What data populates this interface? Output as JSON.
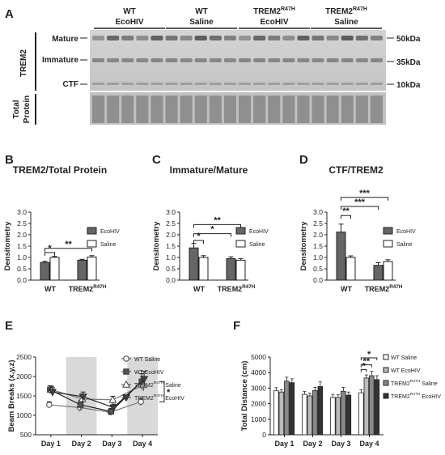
{
  "panels": {
    "A": {
      "letter": "A",
      "groups": [
        {
          "line1": "WT",
          "line1_sup": "",
          "line2": "EcoHIV"
        },
        {
          "line1": "WT",
          "line1_sup": "",
          "line2": "Saline"
        },
        {
          "line1": "TREM2",
          "line1_sup": "R47H",
          "line2": "EcoHIV"
        },
        {
          "line1": "TREM2",
          "line1_sup": "R47H",
          "line2": "Saline"
        }
      ],
      "band_labels": [
        "Mature",
        "Immature",
        "CTF"
      ],
      "side_label": "TREM2",
      "loading_label_1": "Total",
      "loading_label_2": "Protein",
      "markers": [
        "50kDa",
        "35kDa",
        "10kDa"
      ]
    },
    "B": {
      "letter": "B"
    },
    "C": {
      "letter": "C"
    },
    "D": {
      "letter": "D"
    },
    "E": {
      "letter": "E"
    },
    "F": {
      "letter": "F"
    }
  },
  "chart_data": [
    {
      "id": "B",
      "type": "bar",
      "title": "TREM2/Total Protein",
      "ylabel": "Densitometry",
      "ylim": [
        0,
        3.0
      ],
      "yticks": [
        "0.0",
        "0.5",
        "1.0",
        "1.5",
        "2.0",
        "2.5",
        "3.0"
      ],
      "categories": [
        "WT",
        "TREM2"
      ],
      "category_sup": [
        "",
        "R47H"
      ],
      "series": [
        {
          "name": "EcoHIV",
          "values": [
            0.78,
            0.88
          ],
          "errors": [
            0.05,
            0.04
          ],
          "color": "#666666"
        },
        {
          "name": "Saline",
          "values": [
            1.0,
            1.02
          ],
          "errors": [
            0.05,
            0.06
          ],
          "color": "#ffffff"
        }
      ],
      "significance": [
        {
          "from": [
            0,
            0
          ],
          "to": [
            0,
            1
          ],
          "y": 1.22,
          "label": "*"
        },
        {
          "from": [
            0,
            0
          ],
          "to": [
            1,
            1
          ],
          "y": 1.4,
          "label": "**"
        }
      ],
      "legend": "top-right"
    },
    {
      "id": "C",
      "type": "bar",
      "title": "Immature/Mature",
      "ylabel": "Densitometry",
      "ylim": [
        0,
        3.0
      ],
      "yticks": [
        "0.0",
        "0.5",
        "1.0",
        "1.5",
        "2.0",
        "2.5",
        "3.0"
      ],
      "categories": [
        "WT",
        "TREM2"
      ],
      "category_sup": [
        "",
        "R47H"
      ],
      "series": [
        {
          "name": "EcoHIV",
          "values": [
            1.42,
            0.95
          ],
          "errors": [
            0.2,
            0.08
          ],
          "color": "#666666"
        },
        {
          "name": "Saline",
          "values": [
            1.0,
            0.88
          ],
          "errors": [
            0.08,
            0.07
          ],
          "color": "#ffffff"
        }
      ],
      "significance": [
        {
          "from": [
            0,
            0
          ],
          "to": [
            0,
            1
          ],
          "y": 1.75,
          "label": "*"
        },
        {
          "from": [
            0,
            0
          ],
          "to": [
            1,
            0
          ],
          "y": 2.05,
          "label": "*"
        },
        {
          "from": [
            0,
            0
          ],
          "to": [
            1,
            1
          ],
          "y": 2.45,
          "label": "**"
        }
      ],
      "legend": "top-right"
    },
    {
      "id": "D",
      "type": "bar",
      "title": "CTF/TREM2",
      "ylabel": "Densitometry",
      "ylim": [
        0,
        3.0
      ],
      "yticks": [
        "0.0",
        "0.5",
        "1.0",
        "1.5",
        "2.0",
        "2.5",
        "3.0"
      ],
      "categories": [
        "WT",
        "TREM2"
      ],
      "category_sup": [
        "",
        "R47H"
      ],
      "series": [
        {
          "name": "EcoHIV",
          "values": [
            2.12,
            0.65
          ],
          "errors": [
            0.35,
            0.12
          ],
          "color": "#666666"
        },
        {
          "name": "Saline",
          "values": [
            1.0,
            0.82
          ],
          "errors": [
            0.07,
            0.08
          ],
          "color": "#ffffff"
        }
      ],
      "significance": [
        {
          "from": [
            0,
            0
          ],
          "to": [
            0,
            1
          ],
          "y": 2.85,
          "label": "**"
        },
        {
          "from": [
            0,
            0
          ],
          "to": [
            1,
            0
          ],
          "y": 3.25,
          "label": "***"
        },
        {
          "from": [
            0,
            0
          ],
          "to": [
            1,
            1
          ],
          "y": 3.65,
          "label": "***"
        }
      ],
      "legend": "top-right"
    },
    {
      "id": "E",
      "type": "line",
      "ylabel": "Beam Breaks (x,y,z)",
      "ylim": [
        500,
        2500
      ],
      "yticks": [
        "500",
        "1000",
        "1500",
        "2000",
        "2500"
      ],
      "categories": [
        "Day 1",
        "Day 2",
        "Day 3",
        "Day 4"
      ],
      "shaded_categories": [
        1,
        3
      ],
      "series": [
        {
          "name": "WT Saline",
          "name_sup": "",
          "values": [
            1270,
            1200,
            1080,
            1350
          ],
          "errors": [
            80,
            90,
            70,
            90
          ],
          "marker": "circle-open"
        },
        {
          "name": "WT EcoHIV",
          "name_sup": "",
          "values": [
            1660,
            1270,
            1100,
            1870
          ],
          "errors": [
            100,
            110,
            80,
            200
          ],
          "marker": "square-filled"
        },
        {
          "name": "TREM2 Saline",
          "name_sup": "R47H",
          "values": [
            1660,
            1420,
            1400,
            1780
          ],
          "errors": [
            90,
            100,
            90,
            150
          ],
          "marker": "triangle-open"
        },
        {
          "name": "TREM2 EcoHIV",
          "name_sup": "R47H",
          "values": [
            1600,
            1480,
            1200,
            1930
          ],
          "errors": [
            110,
            120,
            90,
            200
          ],
          "marker": "triangle-down-filled"
        }
      ],
      "annotations": [
        "*"
      ],
      "legend": "top-right"
    },
    {
      "id": "F",
      "type": "bar",
      "ylabel": "Total Distance (cm)",
      "ylim": [
        0,
        5000
      ],
      "yticks": [
        "0",
        "1000",
        "2000",
        "3000",
        "4000",
        "5000"
      ],
      "categories": [
        "Day 1",
        "Day 2",
        "Day 3",
        "Day 4"
      ],
      "series": [
        {
          "name": "WT Saline",
          "name_sup": "",
          "values": [
            2850,
            2600,
            2400,
            2700
          ],
          "errors": [
            180,
            180,
            200,
            200
          ],
          "color": "#ffffff"
        },
        {
          "name": "WT EcoHIV",
          "name_sup": "",
          "values": [
            2750,
            2500,
            2400,
            3650
          ],
          "errors": [
            150,
            180,
            170,
            200
          ],
          "color": "#bbbbbb"
        },
        {
          "name": "TREM2 Saline",
          "name_sup": "R47H",
          "values": [
            3450,
            2850,
            2800,
            3800
          ],
          "errors": [
            250,
            200,
            250,
            280
          ],
          "color": "#888888"
        },
        {
          "name": "TREM2 EcoHIV",
          "name_sup": "R47H",
          "values": [
            3350,
            3100,
            2550,
            3550
          ],
          "errors": [
            250,
            300,
            200,
            250
          ],
          "color": "#333333"
        }
      ],
      "significance": [
        {
          "day": 3,
          "from": 0,
          "to": 1,
          "y": 4200,
          "label": "*"
        },
        {
          "day": 3,
          "from": 0,
          "to": 2,
          "y": 4500,
          "label": "**"
        },
        {
          "day": 3,
          "from": 0,
          "to": 3,
          "y": 4950,
          "label": "*"
        }
      ],
      "legend": "top-right"
    }
  ]
}
